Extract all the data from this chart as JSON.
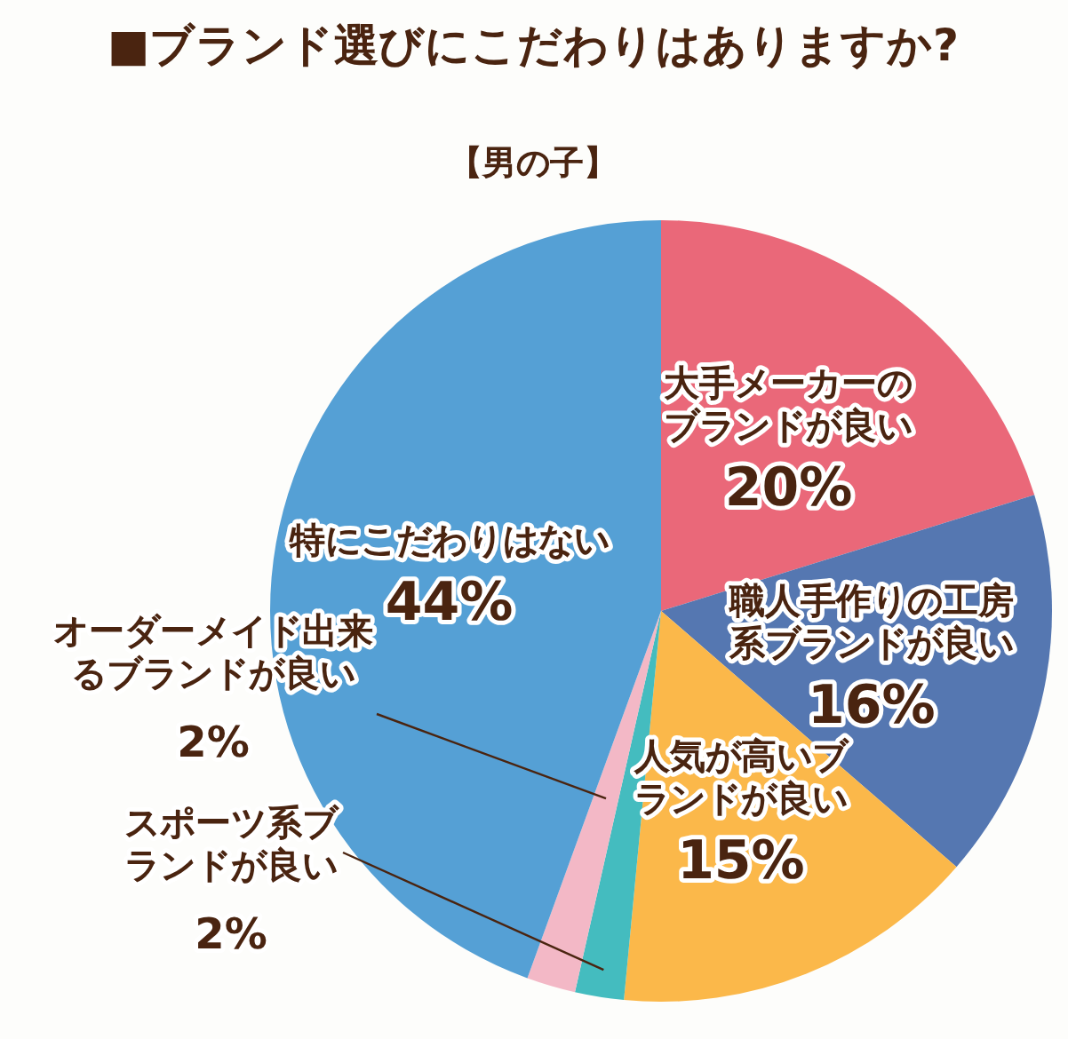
{
  "chart_data": {
    "type": "pie",
    "title": "■ブランド選びにこだわりはありますか?",
    "subtitle": "【男の子】",
    "categories": [
      "大手メーカーのブランドが良い",
      "職人手作りの工房系ブランドが良い",
      "人気が高いブランドが良い",
      "スポーツ系ブランドが良い",
      "オーダーメイド出来るブランドが良い",
      "特にこだわりはない"
    ],
    "values": [
      20,
      16,
      15,
      2,
      2,
      44
    ],
    "value_labels": [
      "20%",
      "16%",
      "15%",
      "2%",
      "2%",
      "44%"
    ],
    "colors": [
      "#ea6879",
      "#5577b1",
      "#fbb84a",
      "#44bcbf",
      "#f3b8c6",
      "#55a0d5"
    ]
  }
}
